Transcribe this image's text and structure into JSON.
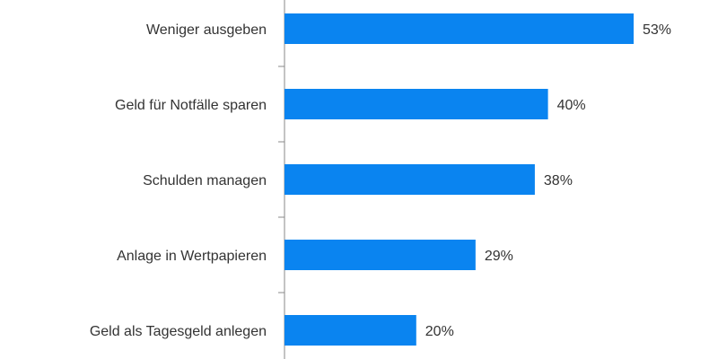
{
  "chart_data": {
    "type": "bar",
    "orientation": "horizontal",
    "categories": [
      "Weniger ausgeben",
      "Geld für Notfälle sparen",
      "Schulden managen",
      "Anlage in Wertpapieren",
      "Geld als Tagesgeld anlegen"
    ],
    "values": [
      53,
      40,
      38,
      29,
      20
    ],
    "data_labels": [
      "53%",
      "40%",
      "38%",
      "29%",
      "20%"
    ],
    "unit": "%",
    "xlim": [
      0,
      53
    ],
    "grid": false,
    "bar_color": "#0a84f0"
  }
}
